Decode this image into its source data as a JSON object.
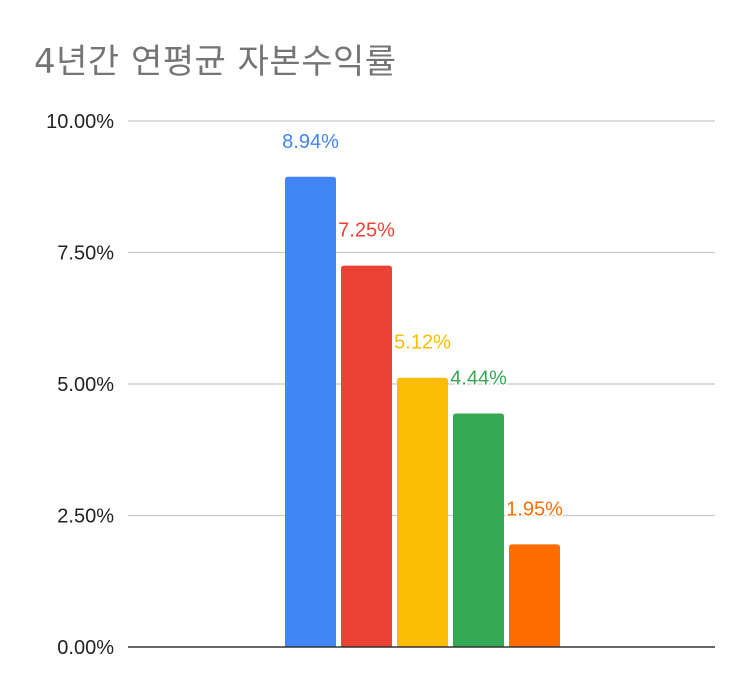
{
  "title": "4년간 연평균 자본수익률",
  "chart_data": {
    "type": "bar",
    "title": "4년간 연평균 자본수익률",
    "xlabel": "",
    "ylabel": "",
    "ylim": [
      0,
      10
    ],
    "yticks": [
      0,
      2.5,
      5,
      7.5,
      10
    ],
    "ytick_labels": [
      "0.00%",
      "2.50%",
      "5.00%",
      "7.50%",
      "10.00%"
    ],
    "grid": true,
    "legend": "none",
    "series": [
      {
        "values": [
          8.94
        ],
        "color": "#4285F4",
        "label": "8.94%"
      },
      {
        "values": [
          7.25
        ],
        "color": "#EA4335",
        "label": "7.25%"
      },
      {
        "values": [
          5.12
        ],
        "color": "#FBBC04",
        "label": "5.12%"
      },
      {
        "values": [
          4.44
        ],
        "color": "#34A853",
        "label": "4.44%"
      },
      {
        "values": [
          1.95
        ],
        "color": "#FF6D01",
        "label": "1.95%"
      }
    ]
  }
}
